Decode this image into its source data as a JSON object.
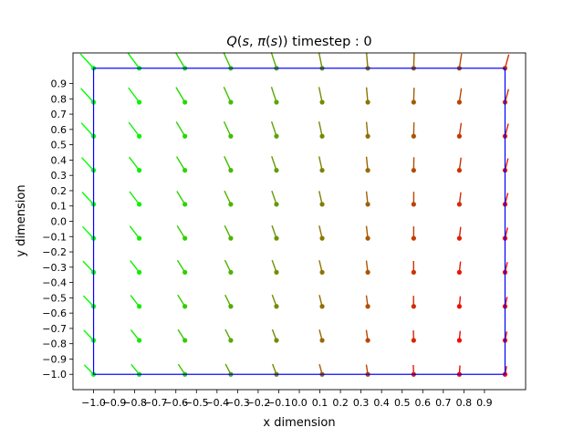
{
  "chart_data": {
    "type": "quiver",
    "title": "Q(s, π(s)) timestep : 0",
    "title_parts": {
      "q": "Q",
      "open": "(",
      "s1": "s",
      "comma": ", ",
      "pi": "π",
      "open2": "(",
      "s2": "s",
      "close": "))",
      "rest": " timestep : 0"
    },
    "xlabel": "x dimension",
    "ylabel": "y dimension",
    "xlim": [
      -1.1,
      1.1
    ],
    "ylim": [
      -1.1,
      1.1
    ],
    "xticks": [
      "−1.0",
      "−0.9",
      "−0.8",
      "−0.7",
      "−0.6",
      "−0.5",
      "−0.4",
      "−0.3",
      "−0.2",
      "−0.1",
      "0.0",
      "0.1",
      "0.2",
      "0.3",
      "0.4",
      "0.5",
      "0.6",
      "0.7",
      "0.8",
      "0.9"
    ],
    "xtick_values": [
      -1.0,
      -0.9,
      -0.8,
      -0.7,
      -0.6,
      -0.5,
      -0.4,
      -0.3,
      -0.2,
      -0.1,
      0.0,
      0.1,
      0.2,
      0.3,
      0.4,
      0.5,
      0.6,
      0.7,
      0.8,
      0.9
    ],
    "yticks": [
      "−1.0",
      "−0.9",
      "−0.8",
      "−0.7",
      "−0.6",
      "−0.5",
      "−0.4",
      "−0.3",
      "−0.2",
      "−0.1",
      "0.0",
      "0.1",
      "0.2",
      "0.3",
      "0.4",
      "0.5",
      "0.6",
      "0.7",
      "0.8",
      "0.9"
    ],
    "ytick_values": [
      -1.0,
      -0.9,
      -0.8,
      -0.7,
      -0.6,
      -0.5,
      -0.4,
      -0.3,
      -0.2,
      -0.1,
      0.0,
      0.1,
      0.2,
      0.3,
      0.4,
      0.5,
      0.6,
      0.7,
      0.8,
      0.9
    ],
    "grid": false,
    "boundary": {
      "x": [
        -1.0,
        1.0
      ],
      "y": [
        -1.0,
        1.0
      ],
      "color": "#0000ff"
    },
    "grid_x": [
      -1.0,
      -0.778,
      -0.556,
      -0.333,
      -0.111,
      0.111,
      0.333,
      0.556,
      0.778,
      1.0
    ],
    "grid_y": [
      -1.0,
      -0.778,
      -0.556,
      -0.333,
      -0.111,
      0.111,
      0.333,
      0.556,
      0.778,
      1.0
    ],
    "color_scale": {
      "low": "#00ff00",
      "high": "#ff0000"
    },
    "arrow_direction": "points toward lower-left from the tail; heads (dots) at grid points",
    "colors": {
      "axes": "#000000",
      "background": "#ffffff"
    }
  }
}
